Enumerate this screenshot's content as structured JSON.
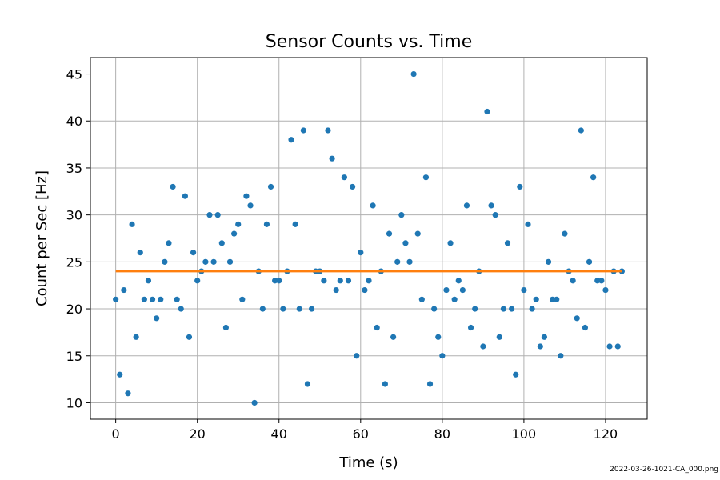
{
  "chart_data": {
    "type": "scatter",
    "title": "Sensor Counts vs. Time",
    "xlabel": "Time (s)",
    "ylabel": "Count per Sec [Hz]",
    "xlim": [
      -6.2,
      130.2
    ],
    "ylim": [
      8.25,
      46.75
    ],
    "xticks": [
      0,
      20,
      40,
      60,
      80,
      100,
      120
    ],
    "yticks": [
      10,
      15,
      20,
      25,
      30,
      35,
      40,
      45
    ],
    "grid": true,
    "series": [
      {
        "type": "scatter",
        "color": "#1f77b4",
        "x": [
          0,
          1,
          2,
          3,
          4,
          5,
          6,
          7,
          8,
          9,
          10,
          11,
          12,
          13,
          14,
          15,
          16,
          17,
          18,
          19,
          20,
          21,
          22,
          23,
          24,
          25,
          26,
          27,
          28,
          29,
          30,
          31,
          32,
          33,
          34,
          35,
          36,
          37,
          38,
          39,
          40,
          41,
          42,
          43,
          44,
          45,
          46,
          47,
          48,
          49,
          50,
          51,
          52,
          53,
          54,
          55,
          56,
          57,
          58,
          59,
          60,
          61,
          62,
          63,
          64,
          65,
          66,
          67,
          68,
          69,
          70,
          71,
          72,
          73,
          74,
          75,
          76,
          77,
          78,
          79,
          80,
          81,
          82,
          83,
          84,
          85,
          86,
          87,
          88,
          89,
          90,
          91,
          92,
          93,
          94,
          95,
          96,
          97,
          98,
          99,
          100,
          101,
          102,
          103,
          104,
          105,
          106,
          107,
          108,
          109,
          110,
          111,
          112,
          113,
          114,
          115,
          116,
          117,
          118,
          119,
          120,
          121,
          122,
          123,
          124
        ],
        "y": [
          21,
          13,
          22,
          11,
          29,
          17,
          26,
          21,
          23,
          21,
          19,
          21,
          25,
          27,
          33,
          21,
          20,
          32,
          17,
          26,
          23,
          24,
          25,
          30,
          25,
          30,
          27,
          18,
          25,
          28,
          29,
          21,
          32,
          31,
          10,
          24,
          20,
          29,
          33,
          23,
          23,
          20,
          24,
          38,
          29,
          20,
          39,
          12,
          20,
          24,
          24,
          23,
          39,
          36,
          22,
          23,
          34,
          23,
          33,
          15,
          26,
          22,
          23,
          31,
          18,
          24,
          12,
          28,
          17,
          25,
          30,
          27,
          25,
          45,
          28,
          21,
          34,
          12,
          20,
          17,
          15,
          22,
          27,
          21,
          23,
          22,
          31,
          18,
          20,
          24,
          16,
          41,
          31,
          30,
          17,
          20,
          27,
          20,
          13,
          33,
          22,
          29,
          20,
          21,
          16,
          17,
          25,
          21,
          21,
          15,
          28,
          24,
          23,
          19,
          39,
          18,
          25,
          34,
          23,
          23,
          22,
          16,
          24,
          16,
          24
        ]
      },
      {
        "type": "line",
        "color": "#ff7f0e",
        "x": [
          0,
          124
        ],
        "y": [
          24,
          24
        ]
      }
    ]
  },
  "footnote": "2022-03-26-1021-CA_000.png"
}
